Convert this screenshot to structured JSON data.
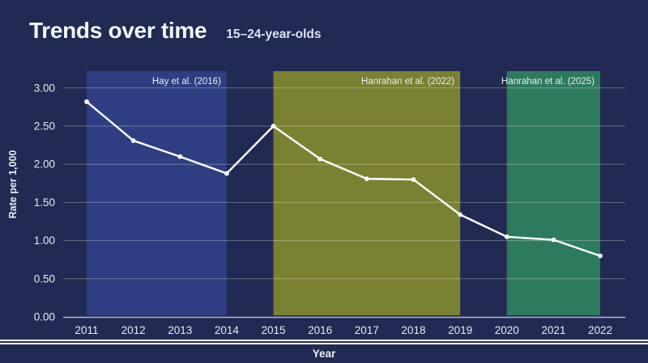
{
  "colors": {
    "background": "#202a52",
    "title_text": "#f4f5f9",
    "text": "#e9ebf3",
    "grid": "rgba(255,255,255,0.30)",
    "axis_line": "rgba(228,232,243,0.75)",
    "line": "#ffffff",
    "divider": "#ffffff"
  },
  "chart_data": {
    "type": "line",
    "title": "Trends over time",
    "subtitle": "15–24-year-olds",
    "xlabel": "Year",
    "ylabel": "Rate per 1,000",
    "x": [
      2011,
      2012,
      2013,
      2014,
      2015,
      2016,
      2017,
      2018,
      2019,
      2020,
      2021,
      2022
    ],
    "series": [
      {
        "name": "Rate per 1,000",
        "color": "#ffffff",
        "values": [
          2.82,
          2.31,
          2.1,
          1.88,
          2.5,
          2.07,
          1.81,
          1.8,
          1.34,
          1.05,
          1.01,
          0.8
        ]
      }
    ],
    "ylim": [
      0,
      3.22
    ],
    "yticks": {
      "values": [
        0,
        0.5,
        1,
        1.5,
        2,
        2.5,
        3
      ],
      "labels": [
        "0.00",
        "0.50",
        "1.00",
        "1.50",
        "2.00",
        "2.50",
        "3.00"
      ]
    },
    "grid": true,
    "legend_position": "none",
    "regions": [
      {
        "label": "Hay et al. (2016)",
        "x_start": 2011,
        "x_end": 2014,
        "color": "#2f3e82"
      },
      {
        "label": "Hanrahan et al. (2022)",
        "x_start": 2015,
        "x_end": 2019,
        "color": "#7b8132"
      },
      {
        "label": "Hanrahan et al. (2025)",
        "x_start": 2020,
        "x_end": 2022,
        "color": "#2e7a5d"
      }
    ]
  }
}
